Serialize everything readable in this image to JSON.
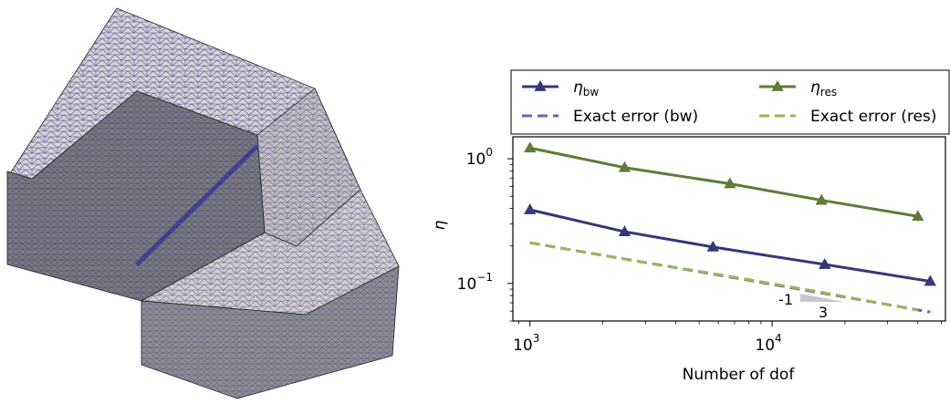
{
  "mesh_figure": {
    "description_label": "",
    "face_colors": {
      "top": "#d6d3cf",
      "left_front": "#7e7e7e",
      "right_front": "#9b9b9b",
      "edge": "#1a1a9e"
    }
  },
  "chart_data": {
    "type": "line",
    "x_scale": "log",
    "y_scale": "log",
    "xlim": [
      850,
      52000
    ],
    "ylim": [
      0.05,
      1.5
    ],
    "xlabel": "Number of dof",
    "ylabel": "η",
    "x_ticks": [
      {
        "value": 1000,
        "base": "10",
        "exp": "3"
      },
      {
        "value": 10000,
        "base": "10",
        "exp": "4"
      }
    ],
    "y_ticks": [
      {
        "value": 1.0,
        "base": "10",
        "exp": "0"
      },
      {
        "value": 0.1,
        "base": "10",
        "exp": "−1"
      }
    ],
    "grid": false,
    "legend_position": "top",
    "series": [
      {
        "name_main": "η",
        "name_sub": "bw",
        "color": "#343877",
        "style": "solid",
        "marker": "triangle",
        "x": [
          1000,
          2460,
          5700,
          16500,
          45000
        ],
        "y": [
          0.39,
          0.26,
          0.196,
          0.142,
          0.104
        ]
      },
      {
        "name_main": "η",
        "name_sub": "res",
        "color": "#5e7b37",
        "style": "solid",
        "marker": "triangle",
        "x": [
          1000,
          2460,
          6700,
          16000,
          40000
        ],
        "y": [
          1.22,
          0.85,
          0.63,
          0.465,
          0.345
        ]
      },
      {
        "name_main": "Exact error (bw)",
        "name_sub": "",
        "color": "#6168a9",
        "style": "dashed",
        "marker": "none",
        "x": [
          1000,
          2460,
          5700,
          16500,
          45000
        ],
        "y": [
          0.212,
          0.157,
          0.119,
          0.083,
          0.059
        ]
      },
      {
        "name_main": "Exact error (res)",
        "name_sub": "",
        "color": "#9bb55c",
        "style": "dashed",
        "marker": "none",
        "x": [
          1000,
          2460,
          6700,
          16000,
          40000
        ],
        "y": [
          0.212,
          0.157,
          0.114,
          0.085,
          0.061
        ]
      }
    ],
    "slope_triangle": {
      "rise_label": "-1",
      "run_label": "3",
      "color": "#c8c8c8"
    }
  }
}
